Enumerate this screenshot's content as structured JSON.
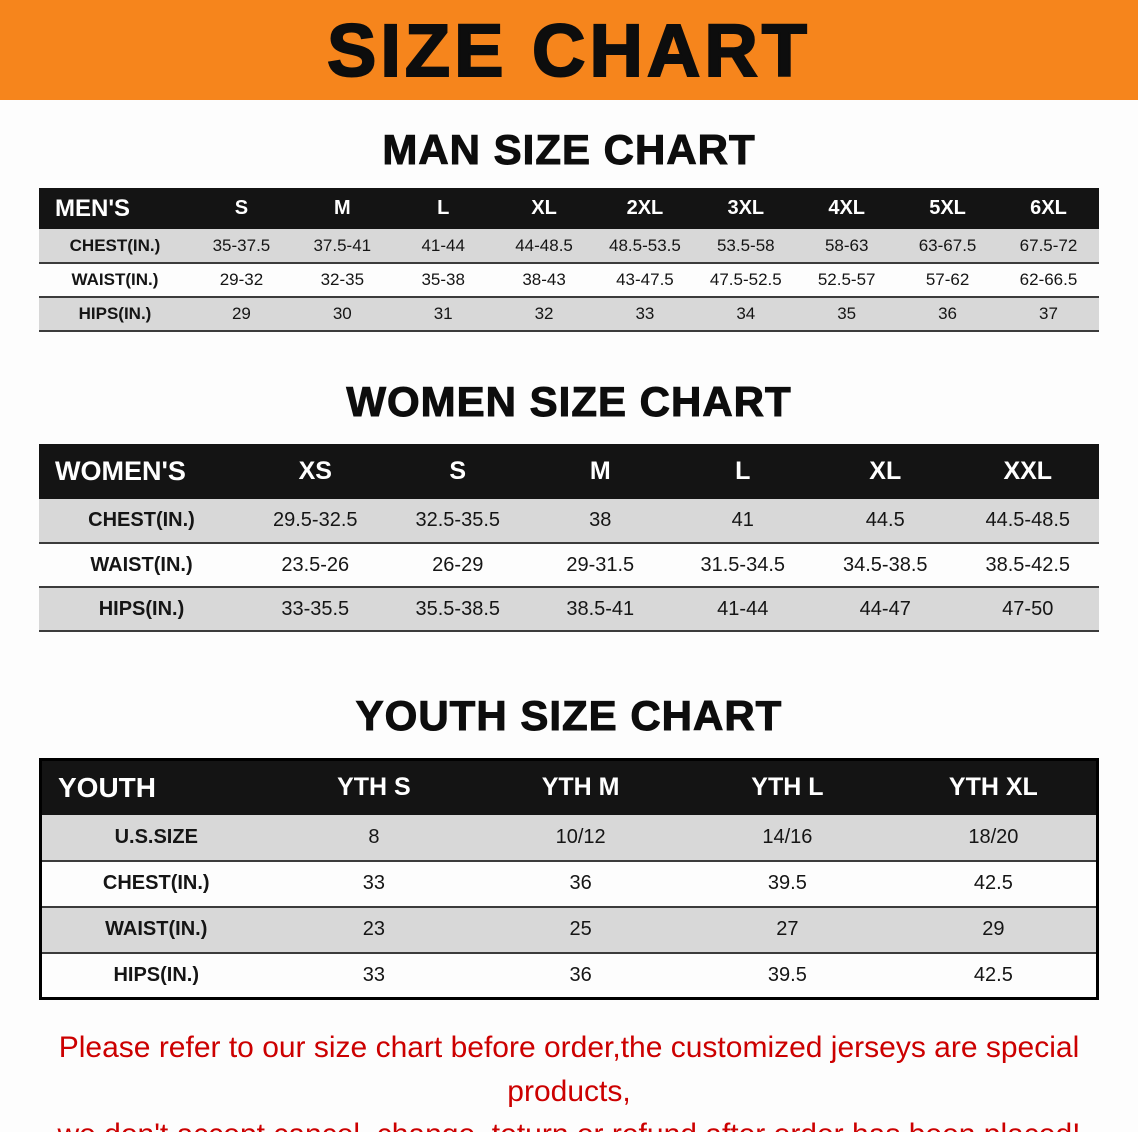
{
  "banner": {
    "title": "SIZE CHART"
  },
  "sections": {
    "men": {
      "heading": "MAN SIZE CHART",
      "header": [
        "MEN'S",
        "S",
        "M",
        "L",
        "XL",
        "2XL",
        "3XL",
        "4XL",
        "5XL",
        "6XL"
      ],
      "rows": [
        [
          "CHEST(IN.)",
          "35-37.5",
          "37.5-41",
          "41-44",
          "44-48.5",
          "48.5-53.5",
          "53.5-58",
          "58-63",
          "63-67.5",
          "67.5-72"
        ],
        [
          "WAIST(IN.)",
          "29-32",
          "32-35",
          "35-38",
          "38-43",
          "43-47.5",
          "47.5-52.5",
          "52.5-57",
          "57-62",
          "62-66.5"
        ],
        [
          "HIPS(IN.)",
          "29",
          "30",
          "31",
          "32",
          "33",
          "34",
          "35",
          "36",
          "37"
        ]
      ]
    },
    "women": {
      "heading": "WOMEN SIZE CHART",
      "header": [
        "WOMEN'S",
        "XS",
        "S",
        "M",
        "L",
        "XL",
        "XXL"
      ],
      "rows": [
        [
          "CHEST(IN.)",
          "29.5-32.5",
          "32.5-35.5",
          "38",
          "41",
          "44.5",
          "44.5-48.5"
        ],
        [
          "WAIST(IN.)",
          "23.5-26",
          "26-29",
          "29-31.5",
          "31.5-34.5",
          "34.5-38.5",
          "38.5-42.5"
        ],
        [
          "HIPS(IN.)",
          "33-35.5",
          "35.5-38.5",
          "38.5-41",
          "41-44",
          "44-47",
          "47-50"
        ]
      ]
    },
    "youth": {
      "heading": "YOUTH SIZE CHART",
      "header": [
        "YOUTH",
        "YTH S",
        "YTH M",
        "YTH L",
        "YTH XL"
      ],
      "rows": [
        [
          "U.S.SIZE",
          "8",
          "10/12",
          "14/16",
          "18/20"
        ],
        [
          "CHEST(IN.)",
          "33",
          "36",
          "39.5",
          "42.5"
        ],
        [
          "WAIST(IN.)",
          "23",
          "25",
          "27",
          "29"
        ],
        [
          "HIPS(IN.)",
          "33",
          "36",
          "39.5",
          "42.5"
        ]
      ]
    }
  },
  "footer": {
    "line1": "Please refer to our size chart before order,the customized jerseys are special products,",
    "line2": "we don't accept cancel, change, teturn or refund after order has been placed!"
  },
  "colors": {
    "banner_bg": "#f6851c",
    "table_header_bg": "#141414",
    "row_alt_bg": "#d8d8d8",
    "footer_text": "#cc0000"
  }
}
